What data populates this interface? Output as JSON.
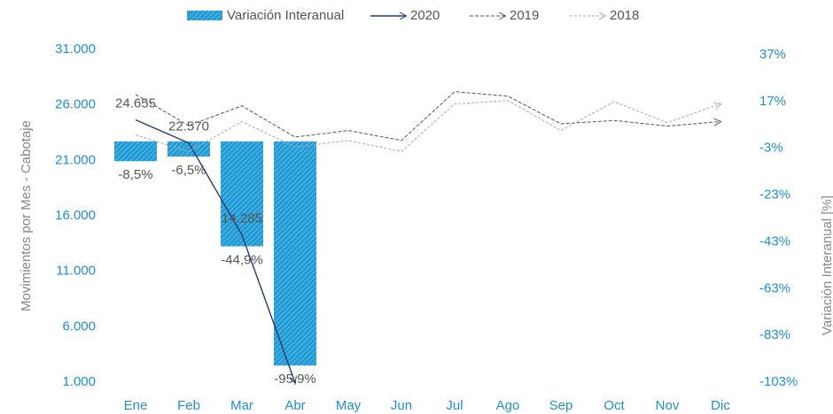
{
  "chart_data": {
    "type": "bar",
    "categories": [
      "Ene",
      "Feb",
      "Mar",
      "Abr",
      "May",
      "Jun",
      "Jul",
      "Ago",
      "Sep",
      "Oct",
      "Nov",
      "Dic"
    ],
    "ylabel": "Movimientos por Mes - Cabotaje",
    "y2label": "Variación Interanual [%]",
    "ylim": [
      1000,
      31000
    ],
    "yticks": [
      {
        "value": 1000,
        "label": "1.000"
      },
      {
        "value": 6000,
        "label": "6.000"
      },
      {
        "value": 11000,
        "label": "11.000"
      },
      {
        "value": 16000,
        "label": "16.000"
      },
      {
        "value": 21000,
        "label": "21.000"
      },
      {
        "value": 26000,
        "label": "26.000"
      },
      {
        "value": 31000,
        "label": "31.000"
      }
    ],
    "y2lim": [
      -103,
      37
    ],
    "y2ticks": [
      {
        "value": -103,
        "label": "-103%"
      },
      {
        "value": -83,
        "label": "-83%"
      },
      {
        "value": -63,
        "label": "-63%"
      },
      {
        "value": -43,
        "label": "-43%"
      },
      {
        "value": -23,
        "label": "-23%"
      },
      {
        "value": -3,
        "label": "-3%"
      },
      {
        "value": 17,
        "label": "17%"
      },
      {
        "value": 37,
        "label": "37%"
      }
    ],
    "grid": false,
    "legend": "top",
    "series": [
      {
        "name": "Variación Interanual",
        "type": "bar",
        "axis": "y2",
        "color": "#1e9ad6",
        "values": [
          -8.5,
          -6.5,
          -44.9,
          -95.9,
          null,
          null,
          null,
          null,
          null,
          null,
          null,
          null
        ],
        "value_labels": [
          "-8,5%",
          "-6,5%",
          "-44,9%",
          "-95,9%",
          null,
          null,
          null,
          null,
          null,
          null,
          null,
          null
        ]
      },
      {
        "name": "2020",
        "type": "line",
        "color": "#1f3c6e",
        "dash": "none",
        "values": [
          24655,
          22570,
          14285,
          950,
          null,
          null,
          null,
          null,
          null,
          null,
          null,
          null
        ],
        "value_labels": [
          "24.655",
          "22.570",
          "14.285",
          null,
          null,
          null,
          null,
          null,
          null,
          null,
          null,
          null
        ]
      },
      {
        "name": "2019",
        "type": "line",
        "color": "#555555",
        "dash": "4,2",
        "values": [
          26945,
          24139,
          25926,
          23100,
          23700,
          22800,
          27200,
          26800,
          24300,
          24600,
          24100,
          24500
        ]
      },
      {
        "name": "2018",
        "type": "line",
        "color": "#aaaaaa",
        "dash": "3,2",
        "values": [
          23300,
          21800,
          24500,
          22200,
          22800,
          21800,
          26100,
          26400,
          23700,
          26300,
          24400,
          26100
        ]
      }
    ]
  }
}
